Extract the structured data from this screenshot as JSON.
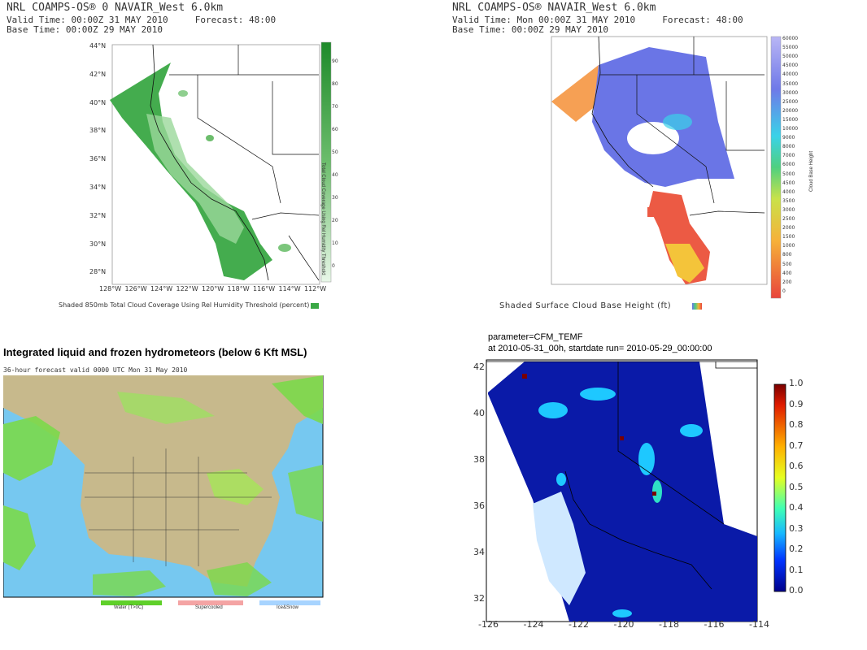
{
  "panel1": {
    "line1": "NRL COAMPS-OS® 0 NAVAIR_West 6.0km",
    "line2": "Valid Time: 00:00Z 31 MAY 2010     Forecast: 48:00",
    "line3": "Base Time: 00:00Z 29 MAY 2010",
    "lat_labels": [
      "44°N",
      "42°N",
      "40°N",
      "38°N",
      "36°N",
      "34°N",
      "32°N",
      "30°N",
      "28°N"
    ],
    "lon_labels": [
      "128°W",
      "126°W",
      "124°W",
      "122°W",
      "120°W",
      "118°W",
      "116°W",
      "114°W",
      "112°W"
    ],
    "colorbar_ticks": [
      "90",
      "80",
      "70",
      "60",
      "50",
      "40",
      "30",
      "20",
      "10",
      "0"
    ],
    "colorbar_title": "Total Cloud Coverage Using Rel Humidity Threshold",
    "caption": "Shaded 850mb Total Cloud Coverage Using Rel Humidity Threshold (percent)",
    "color": "#2e9e3a"
  },
  "panel2": {
    "line1": "NRL COAMPS-OS® NAVAIR_West 6.0km",
    "line2": "Valid Time: Mon 00:00Z 31 MAY 2010     Forecast: 48:00",
    "line3": "Base Time: 00:00Z 29 MAY 2010",
    "colorbar_ticks": [
      "60000",
      "55000",
      "50000",
      "45000",
      "40000",
      "35000",
      "30000",
      "25000",
      "20000",
      "15000",
      "10000",
      "9000",
      "8000",
      "7000",
      "6000",
      "5000",
      "4500",
      "4000",
      "3500",
      "3000",
      "2500",
      "2000",
      "1500",
      "1000",
      "800",
      "500",
      "400",
      "200",
      "0"
    ],
    "colorbar_title": "Cloud Base Height",
    "caption": "Shaded Surface Cloud Base Height (ft)"
  },
  "panel3": {
    "title": "Integrated liquid and frozen hydrometeors (below 6 Kft MSL)",
    "subtitle": "36-hour forecast valid 0000 UTC Mon 31 May 2010",
    "legend_water": "Water (T>0C)",
    "legend_super": "Supercooled",
    "legend_ice": "Ice&Snow"
  },
  "panel4": {
    "param_line": "parameter=CFM_TEMF",
    "at_line": "at 2010-05-31_00h, startdate run= 2010-05-29_00:00:00",
    "y_ticks": [
      "42",
      "40",
      "38",
      "36",
      "34",
      "32"
    ],
    "x_ticks": [
      "-126",
      "-124",
      "-122",
      "-120",
      "-118",
      "-116",
      "-114"
    ],
    "colorbar_ticks": [
      "1.0",
      "0.9",
      "0.8",
      "0.7",
      "0.6",
      "0.5",
      "0.4",
      "0.3",
      "0.2",
      "0.1",
      "0.0"
    ]
  }
}
